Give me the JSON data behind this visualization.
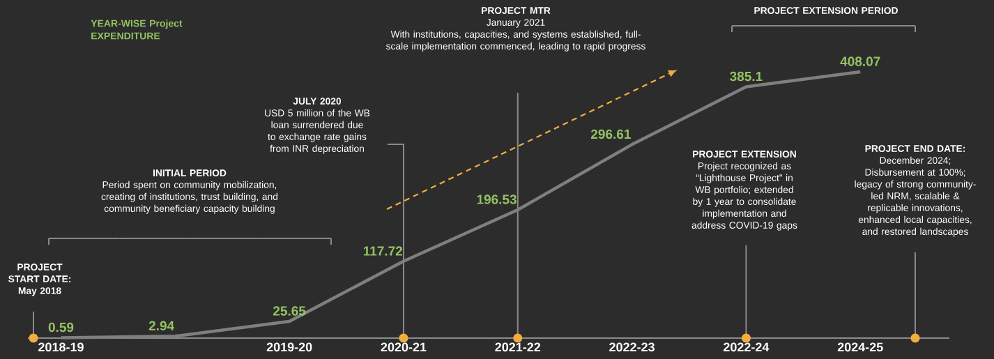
{
  "chart_data": {
    "type": "line",
    "title": "YEAR-WISE Project EXPENDITURE",
    "categories": [
      "2018-19",
      null,
      "2019-20",
      "2020-21",
      "2021-22",
      "2022-23",
      "2022-24",
      "2024-25"
    ],
    "values": [
      0.59,
      2.94,
      25.65,
      117.72,
      196.53,
      296.61,
      385.1,
      408.07
    ],
    "color": "#7f7f7f",
    "data_labels": true,
    "tick_labels": "x",
    "ref_lines": [
      {
        "axis": "x",
        "value": "2020-21",
        "color": "#8a8a8a"
      },
      {
        "axis": "x",
        "value": "2021-22",
        "color": "#8a8a8a"
      },
      {
        "axis": "x",
        "value": "2022-24",
        "color": "#8a8a8a"
      }
    ],
    "annotations": [
      "PROJECT START DATE: May 2018",
      "INITIAL PERIOD",
      "Period spent on community mobilization, creating of institutions, trust building, and community beneficiary capacity building",
      "JULY 2020",
      "USD 5 million of the WB loan surrendered due to exchange rate gains from INR depreciation",
      "PROJECT MTR",
      "January 2021",
      "With institutions, capacities, and systems established, full-scale implementation commenced, leading to rapid progress",
      "PROJECT EXTENSION",
      "Project recognized as “Lighthouse Project” in WB portfolio; extended by 1 year to consolidate implementation and address COVID-19 gaps",
      "PROJECT EXTENSION PERIOD",
      "PROJECT END DATE:",
      "December 2024; Disbursement at 100%; legacy of strong community-led NRM, scalable & replicable innovations, enhanced local capacities, and restored landscapes"
    ]
  }
}
